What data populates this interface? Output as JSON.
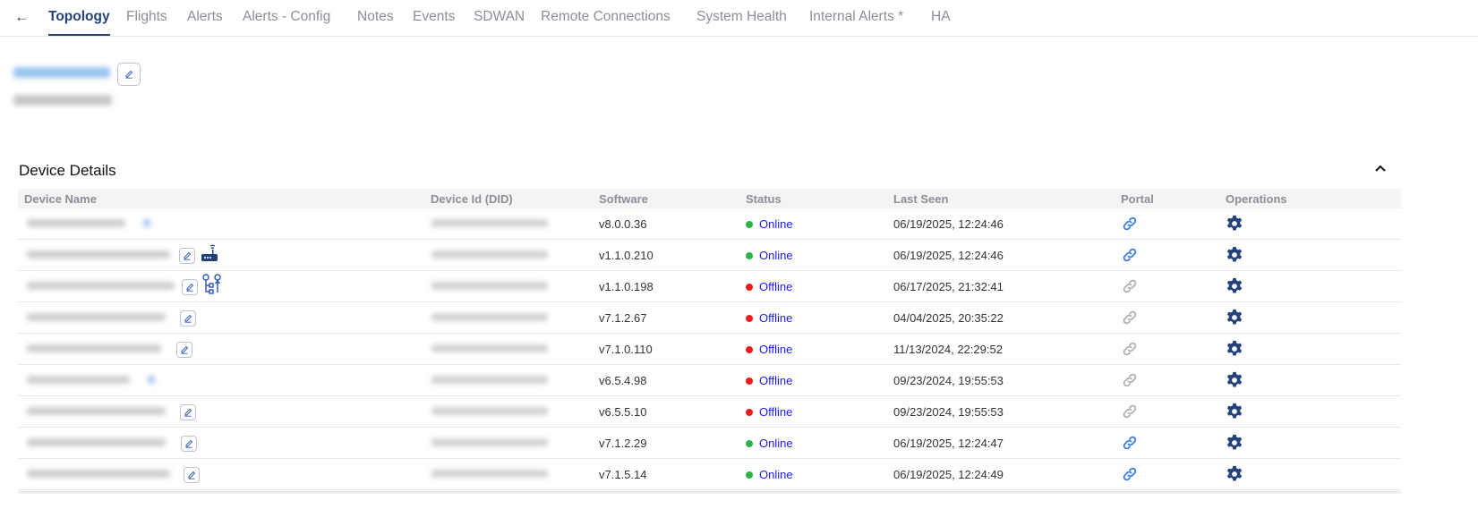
{
  "tabs": [
    {
      "label": "Topology",
      "active": true
    },
    {
      "label": "Flights"
    },
    {
      "label": "Alerts"
    },
    {
      "label": "Alerts - Config"
    },
    {
      "label": "Notes"
    },
    {
      "label": "Events"
    },
    {
      "label": "SDWAN"
    },
    {
      "label": "Remote Connections"
    },
    {
      "label": "System Health"
    },
    {
      "label": "Internal Alerts *"
    },
    {
      "label": "HA"
    }
  ],
  "section": {
    "title": "Device Details"
  },
  "columns": [
    "Device Name",
    "Device Id (DID)",
    "Software",
    "Status",
    "Last Seen",
    "Portal",
    "Operations"
  ],
  "colors": {
    "accent": "#23427a",
    "link_active": "#3b7de0",
    "link_inactive": "#b0b0b0",
    "online": "#2db24a",
    "offline": "#ee1c1c",
    "status_text": "#1a1aff"
  },
  "rows": [
    {
      "software": "v8.0.0.36",
      "status": "Online",
      "last_seen": "06/19/2025, 12:24:46",
      "portal_active": true,
      "extra_icon": ""
    },
    {
      "software": "v1.1.0.210",
      "status": "Online",
      "last_seen": "06/19/2025, 12:24:46",
      "portal_active": true,
      "extra_icon": "router-icon"
    },
    {
      "software": "v1.1.0.198",
      "status": "Offline",
      "last_seen": "06/17/2025, 21:32:41",
      "portal_active": false,
      "extra_icon": "topology-icon"
    },
    {
      "software": "v7.1.2.67",
      "status": "Offline",
      "last_seen": "04/04/2025, 20:35:22",
      "portal_active": false,
      "extra_icon": ""
    },
    {
      "software": "v7.1.0.110",
      "status": "Offline",
      "last_seen": "11/13/2024, 22:29:52",
      "portal_active": false,
      "extra_icon": ""
    },
    {
      "software": "v6.5.4.98",
      "status": "Offline",
      "last_seen": "09/23/2024, 19:55:53",
      "portal_active": false,
      "extra_icon": ""
    },
    {
      "software": "v6.5.5.10",
      "status": "Offline",
      "last_seen": "09/23/2024, 19:55:53",
      "portal_active": false,
      "extra_icon": ""
    },
    {
      "software": "v7.1.2.29",
      "status": "Online",
      "last_seen": "06/19/2025, 12:24:47",
      "portal_active": true,
      "extra_icon": ""
    },
    {
      "software": "v7.1.5.14",
      "status": "Online",
      "last_seen": "06/19/2025, 12:24:49",
      "portal_active": true,
      "extra_icon": ""
    }
  ]
}
